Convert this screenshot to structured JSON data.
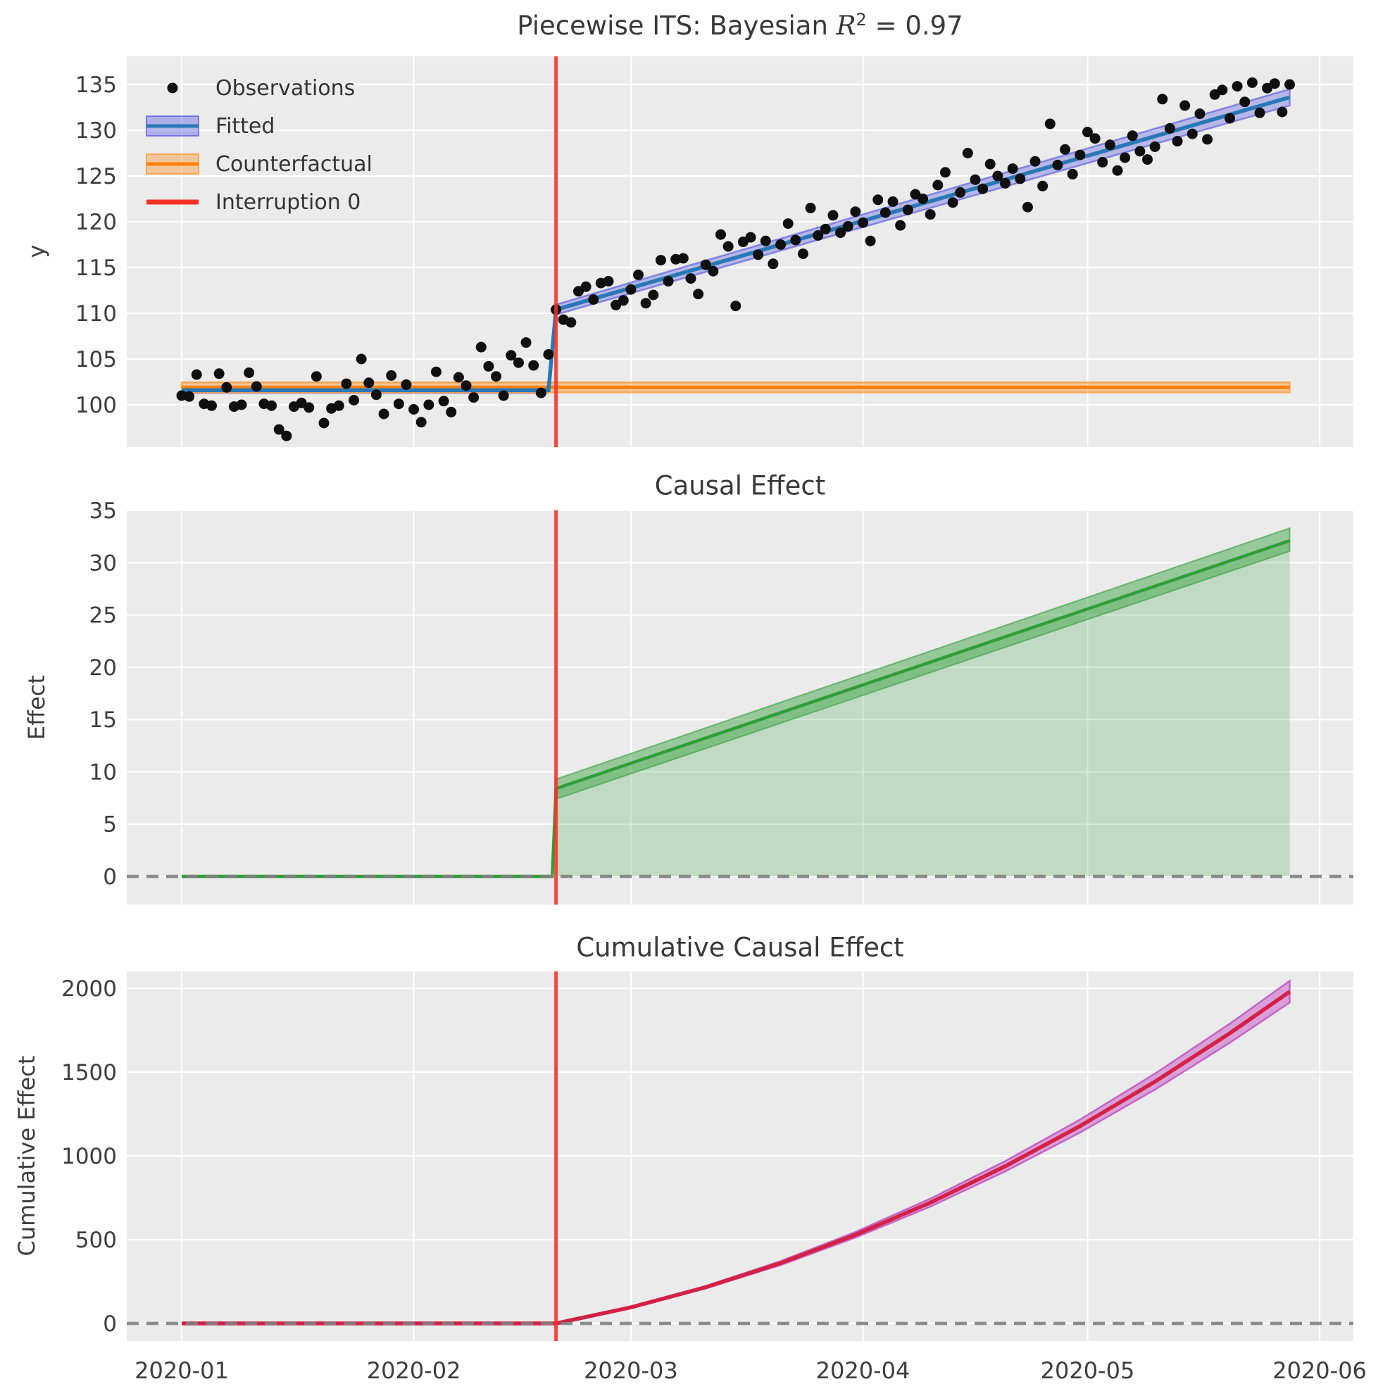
{
  "titles": {
    "top": {
      "prefix": "Piecewise ITS: Bayesian ",
      "math": "R",
      "sup": "2",
      "suffix": " = 0.97"
    }
  },
  "colors": {
    "axes_bg": "#ebebeb",
    "grid": "#ffffff",
    "text": "#3d3d3d",
    "observations": "#0f0f0f",
    "fitted_line": "#2878b8",
    "fitted_band": "#4d50e0",
    "counterfactual_line": "#fd810d",
    "counterfactual_band": "#ff8c1a",
    "interruption": "#f53126",
    "effect_line": "#2f9e38",
    "cumulative_line": "#d42045",
    "cumulative_band": "#c653c6",
    "zero_dash": "#808080"
  },
  "chart_data": {
    "type": "line",
    "x_axis": {
      "start_date": "2020-01-01",
      "frequency": "daily",
      "tick_labels": [
        "2020-01",
        "2020-02",
        "2020-03",
        "2020-04",
        "2020-05",
        "2020-06"
      ],
      "tick_days": [
        0,
        31,
        60,
        91,
        121,
        152
      ],
      "interruption_day": 50,
      "data_end_day": 148
    },
    "legend": {
      "position": "upper left",
      "items": [
        {
          "label": "Observations",
          "type": "dot"
        },
        {
          "label": "Fitted",
          "type": "band"
        },
        {
          "label": "Counterfactual",
          "type": "band"
        },
        {
          "label": "Interruption 0",
          "type": "line"
        }
      ]
    },
    "panels": [
      {
        "title": "Piecewise ITS: Bayesian R² = 0.97",
        "ylabel": "y",
        "yticks": [
          100,
          105,
          110,
          115,
          120,
          125,
          130,
          135
        ],
        "ylim": [
          95.4,
          138.1
        ],
        "observations": {
          "start_day": 0,
          "y": [
            101.0,
            100.9,
            103.3,
            100.1,
            99.9,
            103.4,
            101.9,
            99.8,
            100.0,
            103.5,
            102.0,
            100.1,
            99.9,
            97.3,
            96.6,
            99.8,
            100.2,
            99.7,
            103.1,
            98.0,
            99.6,
            99.9,
            102.3,
            100.5,
            105.0,
            102.4,
            101.1,
            99.0,
            103.2,
            100.1,
            102.2,
            99.5,
            98.1,
            100.0,
            103.6,
            100.4,
            99.2,
            103.0,
            102.1,
            100.8,
            106.3,
            104.2,
            103.1,
            101.0,
            105.4,
            104.6,
            106.8,
            104.3,
            101.3,
            105.5,
            110.4,
            109.3,
            109.0,
            112.4,
            112.9,
            111.5,
            113.3,
            113.5,
            110.9,
            111.4,
            112.6,
            114.2,
            111.1,
            112.0,
            115.8,
            113.5,
            115.9,
            116.0,
            113.8,
            112.1,
            115.3,
            114.6,
            118.6,
            117.3,
            110.8,
            117.8,
            118.3,
            116.4,
            117.9,
            115.4,
            117.5,
            119.8,
            118.0,
            116.5,
            121.5,
            118.5,
            119.2,
            120.7,
            118.8,
            119.5,
            121.1,
            119.9,
            117.9,
            122.4,
            121.0,
            122.2,
            119.6,
            121.3,
            123.0,
            122.5,
            120.8,
            124.0,
            125.4,
            122.1,
            123.2,
            127.5,
            124.6,
            123.6,
            126.3,
            125.0,
            124.2,
            125.8,
            124.7,
            121.6,
            126.6,
            123.9,
            130.7,
            126.2,
            127.9,
            125.2,
            127.3,
            129.8,
            129.1,
            126.5,
            128.4,
            125.6,
            127.0,
            129.4,
            127.7,
            126.8,
            128.2,
            133.4,
            130.2,
            128.8,
            132.7,
            129.6,
            131.8,
            129.0,
            133.9,
            134.4,
            131.3,
            134.8,
            133.1,
            135.2,
            131.9,
            134.6,
            135.1,
            132.0,
            135.0
          ]
        },
        "fitted": {
          "line_days": [
            0,
            49,
            50,
            148
          ],
          "line_y": [
            101.6,
            101.6,
            110.4,
            133.6
          ],
          "pre_band": {
            "days": [
              0,
              49
            ],
            "lower": 101.15,
            "upper": 102.05
          },
          "post_band": {
            "days": [
              50,
              148
            ],
            "lower": [
              109.85,
              132.7
            ],
            "upper": [
              110.95,
              134.5
            ]
          }
        },
        "counterfactual": {
          "days": [
            0,
            148
          ],
          "y": 101.9,
          "band": {
            "lower": 101.35,
            "upper": 102.45
          }
        },
        "interruption_label": "Interruption 0"
      },
      {
        "title": "Causal Effect",
        "ylabel": "Effect",
        "yticks": [
          0,
          5,
          10,
          15,
          20,
          25,
          30,
          35
        ],
        "ylim": [
          -2.7,
          36.3
        ],
        "effect": {
          "line_days": [
            0,
            49.5,
            50,
            148
          ],
          "line_y": [
            0,
            0,
            8.4,
            32.1
          ],
          "band": {
            "days": [
              50,
              148
            ],
            "lower": [
              7.4,
              31.1
            ],
            "upper": [
              9.3,
              33.3
            ]
          },
          "fill_to_zero": true
        },
        "zero_line": 0
      },
      {
        "title": "Cumulative Causal Effect",
        "ylabel": "Cumulative Effect",
        "yticks": [
          0,
          500,
          1000,
          1500,
          2000
        ],
        "ylim": [
          -100,
          2100
        ],
        "cumulative": {
          "days": [
            0,
            50,
            60,
            70,
            80,
            90,
            100,
            110,
            120,
            130,
            140,
            148
          ],
          "values": [
            0,
            0,
            96,
            216,
            360,
            529,
            721,
            938,
            1178,
            1443,
            1732,
            1980
          ],
          "band_halfwidth": [
            0,
            0,
            3,
            7,
            12,
            17,
            24,
            31,
            39,
            48,
            57,
            65
          ]
        },
        "zero_line": 0
      }
    ]
  }
}
